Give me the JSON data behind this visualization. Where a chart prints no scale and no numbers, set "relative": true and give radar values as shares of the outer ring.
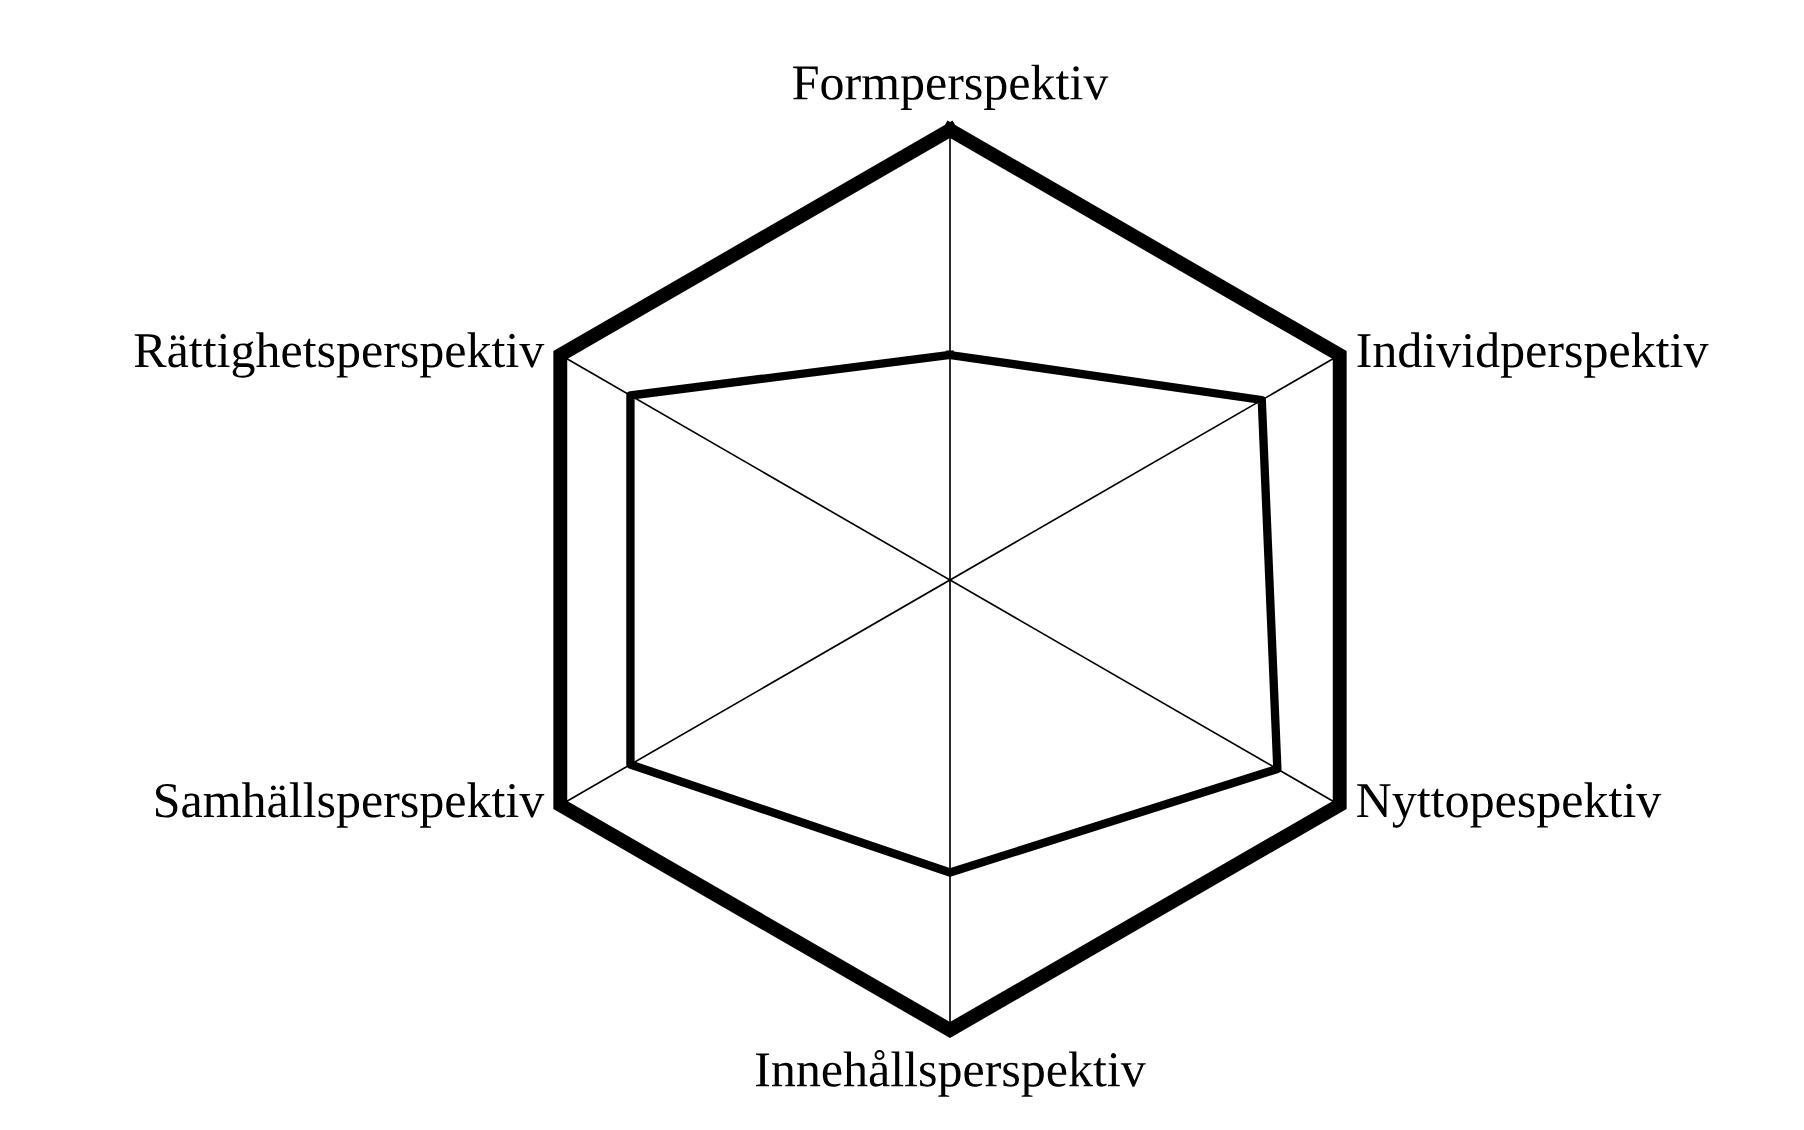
{
  "chart_data": {
    "type": "radar",
    "relative": true,
    "categories": [
      "Formperspektiv",
      "Individperspektiv",
      "Nyttopespektiv",
      "Innehållsperspektiv",
      "Samhällsperspektiv",
      "Rättighetsperspektiv"
    ],
    "series": [
      {
        "color": "#000000",
        "values": [
          0.5,
          0.8,
          0.84,
          0.65,
          0.82,
          0.82
        ]
      }
    ],
    "marker": "none",
    "line_style": "solid",
    "grid": true,
    "legend": false
  }
}
